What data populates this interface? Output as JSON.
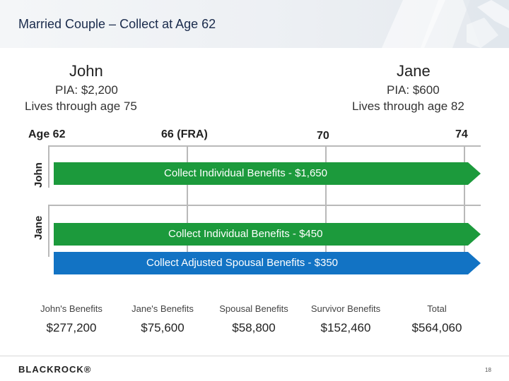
{
  "header": {
    "title": "Married Couple – Collect at Age 62"
  },
  "colors": {
    "green": "#1c9a3c",
    "blue": "#1273c4",
    "line": "#b9b9b9"
  },
  "john": {
    "name": "John",
    "pia": "PIA: $2,200",
    "lives": "Lives through age 75"
  },
  "jane": {
    "name": "Jane",
    "pia": "PIA: $600",
    "lives": "Lives through age 82"
  },
  "timeline": {
    "ages": [
      "Age 62",
      "66 (FRA)",
      "70",
      "74"
    ],
    "rows": [
      "John",
      "Jane"
    ],
    "bars": [
      "Collect Individual Benefits - $1,650",
      "Collect Individual Benefits - $450",
      "Collect Adjusted Spousal Benefits - $350"
    ]
  },
  "summary": {
    "labels": [
      "John's Benefits",
      "Jane's Benefits",
      "Spousal Benefits",
      "Survivor Benefits",
      "Total"
    ],
    "values": [
      "$277,200",
      "$75,600",
      "$58,800",
      "$152,460",
      "$564,060"
    ]
  },
  "footer": {
    "logo": "BLACKROCK®",
    "page": "18"
  }
}
